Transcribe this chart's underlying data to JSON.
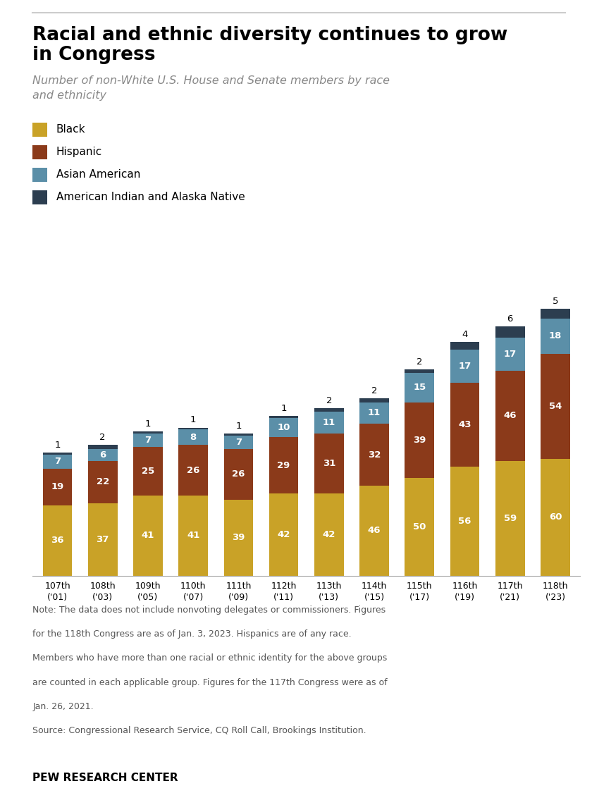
{
  "title_line1": "Racial and ethnic diversity continues to grow",
  "title_line2": "in Congress",
  "subtitle": "Number of non-White U.S. House and Senate members by race\nand ethnicity",
  "categories": [
    "107th\n('01)",
    "108th\n('03)",
    "109th\n('05)",
    "110th\n('07)",
    "111th\n('09)",
    "112th\n('11)",
    "113th\n('13)",
    "114th\n('15)",
    "115th\n('17)",
    "116th\n('19)",
    "117th\n('21)",
    "118th\n('23)"
  ],
  "black": [
    36,
    37,
    41,
    41,
    39,
    42,
    42,
    46,
    50,
    56,
    59,
    60
  ],
  "hispanic": [
    19,
    22,
    25,
    26,
    26,
    29,
    31,
    32,
    39,
    43,
    46,
    54
  ],
  "asian": [
    7,
    6,
    7,
    8,
    7,
    10,
    11,
    11,
    15,
    17,
    17,
    18
  ],
  "aian": [
    1,
    2,
    1,
    1,
    1,
    1,
    2,
    2,
    2,
    4,
    6,
    5
  ],
  "color_black": "#C9A227",
  "color_hispanic": "#8B3A1A",
  "color_asian": "#5B8FA8",
  "color_aian": "#2C3E50",
  "legend_labels": [
    "Black",
    "Hispanic",
    "Asian American",
    "American Indian and Alaska Native"
  ],
  "note_line1": "Note: The data does not include nonvoting delegates or commissioners. Figures",
  "note_line2": "for the 118th Congress are as of Jan. 3, 2023. Hispanics are of any race.",
  "note_line3": "Members who have more than one racial or ethnic identity for the above groups",
  "note_line4": "are counted in each applicable group. Figures for the 117th Congress were as of",
  "note_line5": "Jan. 26, 2021.",
  "note_line6": "Source: Congressional Research Service, CQ Roll Call, Brookings Institution.",
  "footer": "PEW RESEARCH CENTER",
  "background_color": "#FFFFFF",
  "bar_width": 0.65
}
